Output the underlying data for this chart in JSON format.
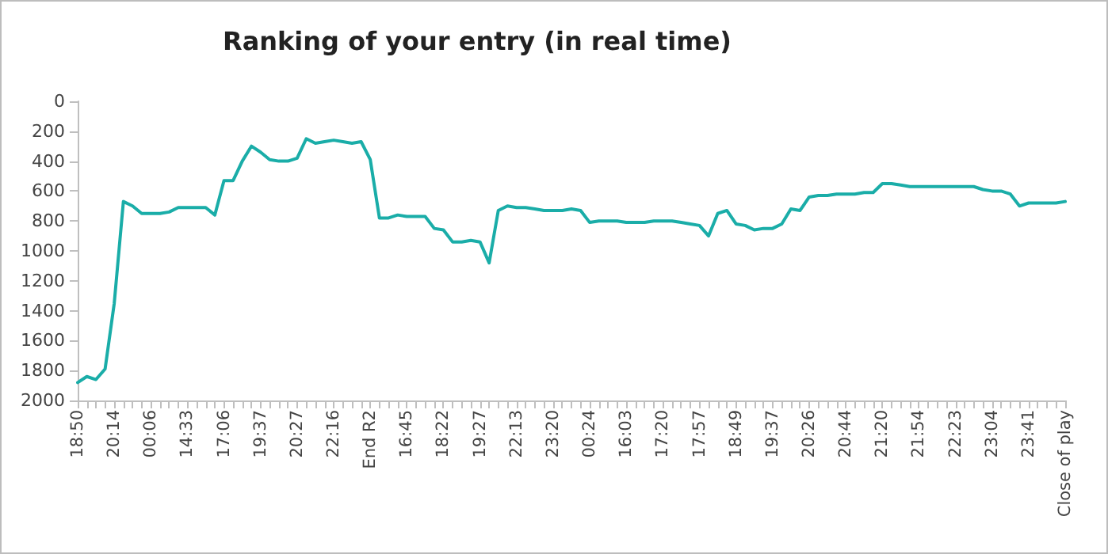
{
  "chart_data": {
    "type": "line",
    "title": "Ranking of your entry (in real time)",
    "categories": [
      "18:50",
      null,
      null,
      null,
      "20:14",
      null,
      null,
      null,
      "00:06",
      null,
      null,
      null,
      "14:33",
      null,
      null,
      null,
      "17:06",
      null,
      null,
      null,
      "19:37",
      null,
      null,
      null,
      "20:27",
      null,
      null,
      null,
      "22:16",
      null,
      null,
      null,
      "End R2",
      null,
      null,
      null,
      "16:45",
      null,
      null,
      null,
      "18:22",
      null,
      null,
      null,
      "19:27",
      null,
      null,
      null,
      "22:13",
      null,
      null,
      null,
      "23:20",
      null,
      null,
      null,
      "00:24",
      null,
      null,
      null,
      "16:03",
      null,
      null,
      null,
      "17:20",
      null,
      null,
      null,
      "17:57",
      null,
      null,
      null,
      "18:49",
      null,
      null,
      null,
      "19:37",
      null,
      null,
      null,
      "20:26",
      null,
      null,
      null,
      "20:44",
      null,
      null,
      null,
      "21:20",
      null,
      null,
      null,
      "21:54",
      null,
      null,
      null,
      "22:23",
      null,
      null,
      null,
      "23:04",
      null,
      null,
      null,
      "23:41",
      null,
      null,
      null,
      "Close of play"
    ],
    "series": [
      {
        "color": "#1aada8",
        "values": [
          1880,
          1840,
          1860,
          1790,
          1350,
          670,
          700,
          750,
          750,
          750,
          740,
          710,
          710,
          710,
          710,
          760,
          530,
          530,
          400,
          300,
          340,
          390,
          400,
          400,
          380,
          250,
          280,
          270,
          260,
          270,
          280,
          270,
          390,
          780,
          780,
          760,
          770,
          770,
          770,
          850,
          860,
          940,
          940,
          930,
          940,
          1080,
          730,
          700,
          710,
          710,
          720,
          730,
          730,
          730,
          720,
          730,
          810,
          800,
          800,
          800,
          810,
          810,
          810,
          800,
          800,
          800,
          810,
          820,
          830,
          900,
          750,
          730,
          820,
          830,
          860,
          850,
          850,
          820,
          720,
          730,
          640,
          630,
          630,
          620,
          620,
          620,
          610,
          610,
          550,
          550,
          560,
          570,
          570,
          570,
          570,
          570,
          570,
          570,
          570,
          590,
          600,
          600,
          620,
          700,
          680,
          680,
          680,
          680,
          670
        ]
      }
    ],
    "ylim": [
      2000,
      0
    ],
    "yticks": [
      0,
      200,
      400,
      600,
      800,
      1000,
      1200,
      1400,
      1600,
      1800,
      2000
    ],
    "grid": false,
    "marker": "none",
    "line_style": "solid"
  }
}
